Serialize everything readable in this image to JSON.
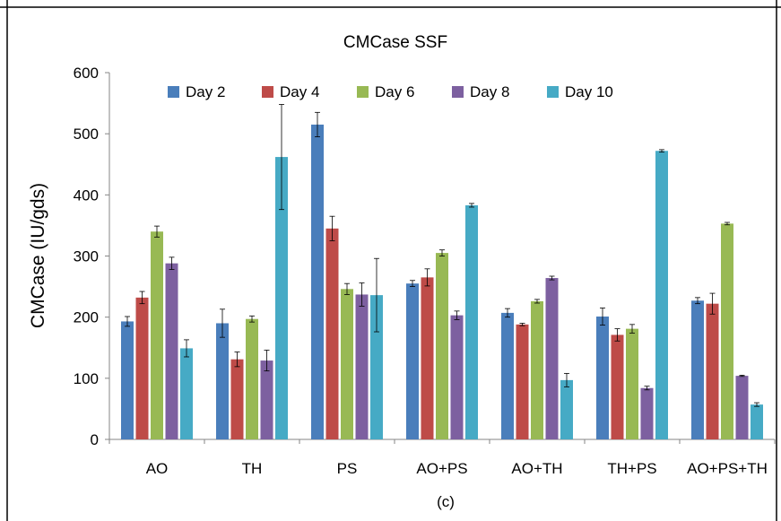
{
  "chart_data": {
    "type": "bar",
    "title": "CMCase SSF",
    "xlabel": "(c)",
    "ylabel": "CMCase (IU/gds)",
    "ylim": [
      0,
      600
    ],
    "yticks": [
      "0",
      "100",
      "200",
      "300",
      "400",
      "500",
      "600"
    ],
    "grid": false,
    "legend_position": "top",
    "categories": [
      "AO",
      "TH",
      "PS",
      "AO+PS",
      "AO+TH",
      "TH+PS",
      "AO+PS+TH"
    ],
    "series": [
      {
        "name": "Day 2",
        "color": "#4a7ebb",
        "values": [
          193,
          190,
          515,
          255,
          207,
          201,
          227
        ],
        "errors": [
          8,
          23,
          20,
          5,
          7,
          14,
          5
        ]
      },
      {
        "name": "Day 4",
        "color": "#be4b48",
        "values": [
          232,
          131,
          345,
          265,
          188,
          171,
          222
        ],
        "errors": [
          10,
          12,
          20,
          14,
          2,
          10,
          17
        ]
      },
      {
        "name": "Day 6",
        "color": "#98b954",
        "values": [
          340,
          197,
          246,
          305,
          226,
          181,
          353
        ],
        "errors": [
          9,
          5,
          9,
          5,
          3,
          7,
          2
        ]
      },
      {
        "name": "Day 8",
        "color": "#7d60a0",
        "values": [
          288,
          129,
          237,
          203,
          264,
          84,
          104
        ],
        "errors": [
          10,
          17,
          19,
          7,
          3,
          3,
          1
        ]
      },
      {
        "name": "Day 10",
        "color": "#46aac5",
        "values": [
          149,
          462,
          236,
          383,
          97,
          472,
          57
        ],
        "errors": [
          14,
          86,
          60,
          3,
          11,
          2,
          3
        ]
      }
    ]
  }
}
